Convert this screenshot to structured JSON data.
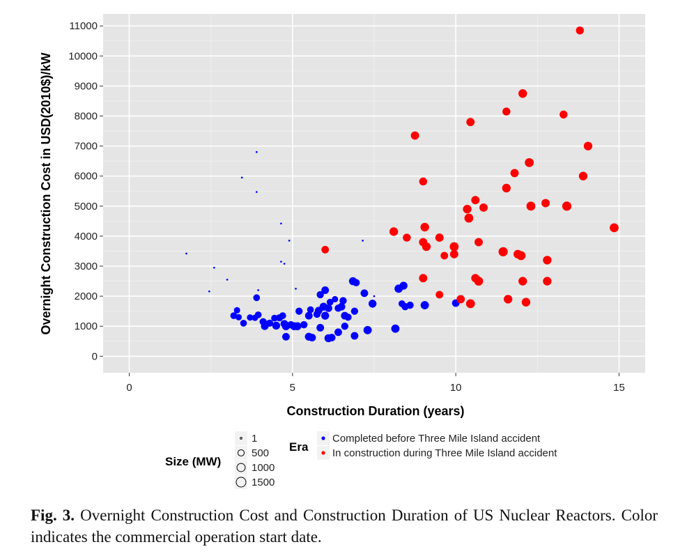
{
  "caption": {
    "label": "Fig. 3.",
    "text": "Overnight Construction Cost and Construction Duration of US Nuclear Reactors. Color indicates the commercial operation start date."
  },
  "chart_data": {
    "type": "scatter",
    "xlabel": "Construction Duration (years)",
    "ylabel": "Overnight Construction Cost in USD(2010$)/kW",
    "xlim": [
      -0.8,
      15.8
    ],
    "ylim": [
      -550,
      11400
    ],
    "xticks": [
      0,
      5,
      10,
      15
    ],
    "yticks": [
      0,
      1000,
      2000,
      3000,
      4000,
      5000,
      6000,
      7000,
      8000,
      9000,
      10000,
      11000
    ],
    "grid": true,
    "background": "#e5e5e5",
    "legend_position": "bottom",
    "size_legend": {
      "title": "Size (MW)",
      "entries": [
        {
          "label": "1",
          "mw": 1
        },
        {
          "label": "500",
          "mw": 500
        },
        {
          "label": "1000",
          "mw": 1000
        },
        {
          "label": "1500",
          "mw": 1500
        }
      ]
    },
    "color_legend": {
      "title": "Era",
      "entries": [
        {
          "label": "Completed before Three Mile Island accident",
          "color": "#0000ff"
        },
        {
          "label": "In construction during Three Mile Island accident",
          "color": "#ff0000"
        }
      ]
    },
    "series": [
      {
        "name": "Completed before Three Mile Island accident",
        "color": "#0000ff",
        "points": [
          [
            1.75,
            3420,
            1
          ],
          [
            2.45,
            2160,
            1
          ],
          [
            2.6,
            2950,
            1
          ],
          [
            3.0,
            2550,
            1
          ],
          [
            3.45,
            5950,
            1
          ],
          [
            3.9,
            6800,
            1
          ],
          [
            3.9,
            5470,
            1
          ],
          [
            3.95,
            2200,
            1
          ],
          [
            4.65,
            4420,
            1
          ],
          [
            4.65,
            3150,
            1
          ],
          [
            4.75,
            3080,
            1
          ],
          [
            4.9,
            3850,
            1
          ],
          [
            5.1,
            2250,
            1
          ],
          [
            7.15,
            3850,
            1
          ],
          [
            7.5,
            2000,
            1
          ],
          [
            3.2,
            1350,
            600
          ],
          [
            3.3,
            1530,
            500
          ],
          [
            3.35,
            1300,
            500
          ],
          [
            3.5,
            1100,
            600
          ],
          [
            3.7,
            1290,
            500
          ],
          [
            3.85,
            1280,
            500
          ],
          [
            3.9,
            1950,
            600
          ],
          [
            3.95,
            1380,
            600
          ],
          [
            4.1,
            1150,
            700
          ],
          [
            4.15,
            1000,
            800
          ],
          [
            4.3,
            1100,
            700
          ],
          [
            4.45,
            1270,
            600
          ],
          [
            4.5,
            1020,
            900
          ],
          [
            4.6,
            1280,
            700
          ],
          [
            4.7,
            1350,
            600
          ],
          [
            4.75,
            1080,
            800
          ],
          [
            4.8,
            1000,
            900
          ],
          [
            4.8,
            650,
            800
          ],
          [
            4.95,
            1050,
            700
          ],
          [
            5.05,
            1000,
            900
          ],
          [
            5.15,
            1000,
            900
          ],
          [
            5.2,
            1500,
            700
          ],
          [
            5.35,
            1050,
            700
          ],
          [
            5.5,
            1350,
            800
          ],
          [
            5.5,
            650,
            900
          ],
          [
            5.55,
            1550,
            600
          ],
          [
            5.6,
            620,
            800
          ],
          [
            5.75,
            1400,
            700
          ],
          [
            5.8,
            1520,
            800
          ],
          [
            5.85,
            950,
            800
          ],
          [
            5.85,
            2050,
            700
          ],
          [
            5.95,
            1650,
            900
          ],
          [
            6.0,
            1350,
            900
          ],
          [
            6.0,
            2200,
            800
          ],
          [
            6.1,
            1600,
            800
          ],
          [
            6.1,
            600,
            900
          ],
          [
            6.15,
            1800,
            600
          ],
          [
            6.2,
            620,
            800
          ],
          [
            6.3,
            1900,
            500
          ],
          [
            6.4,
            1600,
            700
          ],
          [
            6.4,
            800,
            800
          ],
          [
            6.5,
            1650,
            800
          ],
          [
            6.55,
            1850,
            700
          ],
          [
            6.6,
            1350,
            800
          ],
          [
            6.6,
            1000,
            700
          ],
          [
            6.7,
            1300,
            700
          ],
          [
            6.85,
            2500,
            900
          ],
          [
            6.9,
            1500,
            700
          ],
          [
            6.9,
            680,
            800
          ],
          [
            6.95,
            2450,
            700
          ],
          [
            7.2,
            2100,
            800
          ],
          [
            7.3,
            870,
            1000
          ],
          [
            7.45,
            1750,
            900
          ],
          [
            8.15,
            920,
            1000
          ],
          [
            8.25,
            2250,
            1000
          ],
          [
            8.4,
            2350,
            900
          ],
          [
            8.35,
            1750,
            600
          ],
          [
            8.45,
            1650,
            700
          ],
          [
            8.6,
            1700,
            700
          ],
          [
            9.05,
            1700,
            1000
          ],
          [
            10.0,
            1770,
            800
          ]
        ]
      },
      {
        "name": "In construction during Three Mile Island accident",
        "color": "#ff0000",
        "points": [
          [
            6.0,
            3550,
            800
          ],
          [
            8.1,
            4150,
            1100
          ],
          [
            8.5,
            3950,
            900
          ],
          [
            8.75,
            7350,
            1000
          ],
          [
            9.0,
            5820,
            900
          ],
          [
            9.0,
            3800,
            1000
          ],
          [
            9.0,
            2600,
            1000
          ],
          [
            9.05,
            4300,
            1100
          ],
          [
            9.1,
            3650,
            1100
          ],
          [
            9.5,
            3950,
            1000
          ],
          [
            9.5,
            2050,
            800
          ],
          [
            9.65,
            3350,
            800
          ],
          [
            9.95,
            3650,
            1200
          ],
          [
            9.95,
            3400,
            1000
          ],
          [
            10.15,
            1900,
            1000
          ],
          [
            10.35,
            4900,
            1100
          ],
          [
            10.4,
            4600,
            1200
          ],
          [
            10.45,
            7800,
            1000
          ],
          [
            10.45,
            1750,
            1200
          ],
          [
            10.6,
            5200,
            1000
          ],
          [
            10.6,
            2600,
            1000
          ],
          [
            10.7,
            2500,
            1200
          ],
          [
            10.7,
            3800,
            1000
          ],
          [
            10.85,
            4950,
            1000
          ],
          [
            11.45,
            3480,
            1300
          ],
          [
            11.55,
            8150,
            900
          ],
          [
            11.55,
            5600,
            1100
          ],
          [
            11.6,
            1900,
            1100
          ],
          [
            11.8,
            6100,
            1000
          ],
          [
            11.9,
            3400,
            1100
          ],
          [
            12.0,
            3350,
            1200
          ],
          [
            12.05,
            8750,
            1100
          ],
          [
            12.05,
            2500,
            1100
          ],
          [
            12.15,
            1800,
            1100
          ],
          [
            12.25,
            6450,
            1200
          ],
          [
            12.3,
            5000,
            1200
          ],
          [
            12.75,
            5100,
            1000
          ],
          [
            12.8,
            3200,
            1100
          ],
          [
            12.8,
            2500,
            1100
          ],
          [
            13.3,
            8050,
            900
          ],
          [
            13.4,
            5000,
            1300
          ],
          [
            13.8,
            10850,
            900
          ],
          [
            13.9,
            6000,
            1100
          ],
          [
            14.05,
            7000,
            1100
          ],
          [
            14.85,
            4280,
            1200
          ]
        ]
      }
    ]
  }
}
